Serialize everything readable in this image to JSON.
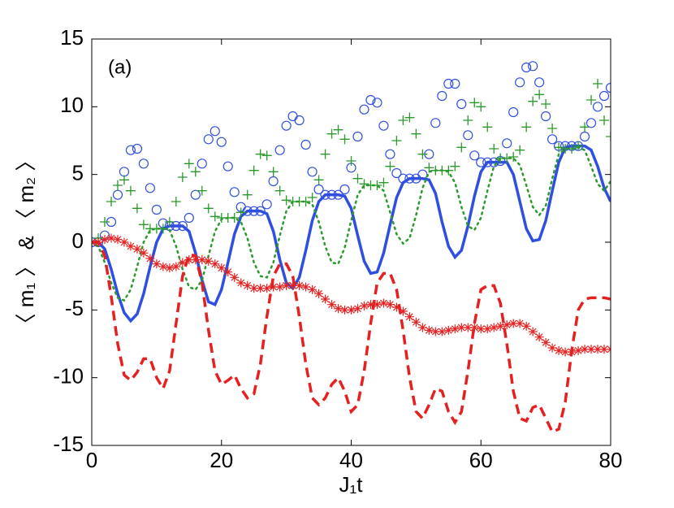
{
  "chart_data": {
    "type": "line",
    "annotation": "(a)",
    "xlabel": "J₁t",
    "ylabel": "〈 m₁ 〉 & 〈 m₂ 〉",
    "xlim": [
      0,
      80
    ],
    "xticks": [
      0,
      20,
      40,
      60,
      80
    ],
    "ylim": [
      -15,
      15
    ],
    "yticks": [
      -15,
      -10,
      -5,
      0,
      5,
      10,
      15
    ],
    "grid": false,
    "x": [
      0,
      1,
      2,
      3,
      4,
      5,
      6,
      7,
      8,
      9,
      10,
      11,
      12,
      13,
      14,
      15,
      16,
      17,
      18,
      19,
      20,
      21,
      22,
      23,
      24,
      25,
      26,
      27,
      28,
      29,
      30,
      31,
      32,
      33,
      34,
      35,
      36,
      37,
      38,
      39,
      40,
      41,
      42,
      43,
      44,
      45,
      46,
      47,
      48,
      49,
      50,
      51,
      52,
      53,
      54,
      55,
      56,
      57,
      58,
      59,
      60,
      61,
      62,
      63,
      64,
      65,
      66,
      67,
      68,
      69,
      70,
      71,
      72,
      73,
      74,
      75,
      76,
      77,
      78,
      79,
      80
    ],
    "series": [
      {
        "color": "#2f4fe0",
        "line": "solid",
        "marker": "none",
        "values": [
          0,
          0,
          -0.5,
          -2,
          -3.8,
          -5.2,
          -5.8,
          -5.3,
          -3.8,
          -1.8,
          0,
          1.0,
          1.2,
          1.2,
          1.2,
          0.8,
          -0.8,
          -2.8,
          -4.4,
          -4.6,
          -3.5,
          -1.5,
          0.6,
          1.9,
          2.3,
          2.3,
          2.3,
          2.1,
          0.8,
          -1.3,
          -3,
          -3.4,
          -2.6,
          -0.6,
          1.6,
          3.0,
          3.5,
          3.5,
          3.5,
          3.4,
          2.5,
          0.5,
          -1.4,
          -2.3,
          -2.2,
          -0.8,
          1.3,
          3.3,
          4.4,
          4.7,
          4.7,
          4.7,
          4.6,
          3.6,
          1.5,
          -0.3,
          -1.1,
          -0.6,
          1.2,
          3.4,
          5.2,
          5.9,
          5.9,
          5.9,
          5.9,
          5.0,
          3.0,
          1.0,
          0.1,
          0.2,
          1.6,
          3.8,
          5.9,
          7.0,
          7.1,
          7.1,
          7.1,
          6.8,
          5.6,
          4.0,
          3.0
        ]
      },
      {
        "color": "#2f4fe0",
        "line": "none",
        "marker": "o",
        "values": [
          0,
          0,
          0.5,
          1.5,
          3.5,
          5.2,
          6.8,
          6.9,
          5.8,
          4,
          2.4,
          1.4,
          1.2,
          1.2,
          1.2,
          1.8,
          3.5,
          5.8,
          7.6,
          8.2,
          7.4,
          5.6,
          3.7,
          2.6,
          2.3,
          2.3,
          2.3,
          2.8,
          4.5,
          6.8,
          8.6,
          9.3,
          9.0,
          7.2,
          5.2,
          3.9,
          3.5,
          3.5,
          3.5,
          3.9,
          5.5,
          7.8,
          9.8,
          10.5,
          10.3,
          8.6,
          6.5,
          5.1,
          4.7,
          4.7,
          4.7,
          5.0,
          6.5,
          8.8,
          10.8,
          11.7,
          11.7,
          10.2,
          7.9,
          6.4,
          5.9,
          5.9,
          5.9,
          6.0,
          7.3,
          9.6,
          11.8,
          12.9,
          13.0,
          11.8,
          9.3,
          7.6,
          7.1,
          7.1,
          7.1,
          7.1,
          7.8,
          8.8,
          10.0,
          10.8,
          11.4
        ]
      },
      {
        "color": "#2a9a2a",
        "line": "dotted",
        "marker": "none",
        "values": [
          0,
          -0.3,
          -1.5,
          -3,
          -4.1,
          -4.3,
          -3.5,
          -1.8,
          0,
          0.9,
          1,
          1,
          0.9,
          -0.3,
          -2,
          -3.3,
          -3.5,
          -2.8,
          -1,
          0.8,
          1.7,
          1.8,
          1.8,
          1.5,
          0.3,
          -1.5,
          -2.5,
          -2.6,
          -1.5,
          0.5,
          2.3,
          3,
          3,
          3,
          2.8,
          1.5,
          -0.3,
          -1.5,
          -1.6,
          -0.4,
          1.6,
          3.5,
          4.2,
          4.2,
          4.2,
          3.8,
          2.2,
          0.6,
          -0.1,
          0.3,
          2,
          4,
          5.2,
          5.3,
          5.3,
          5.2,
          4.4,
          2.6,
          1.2,
          0.9,
          1.8,
          3.8,
          5.6,
          6.2,
          6.2,
          6.2,
          5.7,
          4.2,
          2.6,
          2.0,
          2.7,
          4.7,
          6.5,
          6.9,
          6.9,
          7,
          6.8,
          5.6,
          4.3,
          3.8,
          4.5
        ]
      },
      {
        "color": "#2a9a2a",
        "line": "none",
        "marker": "+",
        "values": [
          0,
          0.3,
          1.5,
          3,
          4.2,
          4.6,
          3.8,
          2.5,
          1.3,
          1,
          1,
          1,
          1.5,
          3,
          4.8,
          5.8,
          5.2,
          3.8,
          2.5,
          1.9,
          1.8,
          1.8,
          1.8,
          2.2,
          3.5,
          5.3,
          6.5,
          6.4,
          5.2,
          3.8,
          3.1,
          3,
          3,
          3,
          3.3,
          4.6,
          6.5,
          8.0,
          8.3,
          7.6,
          6.0,
          4.7,
          4.3,
          4.2,
          4.2,
          4.4,
          5.6,
          7.5,
          9.0,
          9.2,
          8.0,
          6.5,
          5.5,
          5.3,
          5.3,
          5.3,
          5.6,
          7.0,
          9.0,
          10.3,
          10.0,
          8.5,
          6.9,
          6.2,
          6.2,
          6.3,
          6.8,
          8.5,
          10.4,
          10.9,
          10.2,
          8.4,
          7.0,
          6.9,
          6.9,
          7.1,
          8.5,
          10.5,
          11.7,
          9.0,
          7.8
        ]
      },
      {
        "color": "#e62020",
        "line": "dashed",
        "marker": "none",
        "values": [
          0,
          0,
          -1,
          -4,
          -7.5,
          -9.8,
          -10.2,
          -9.6,
          -8.6,
          -8.6,
          -10,
          -10.8,
          -9.5,
          -6,
          -2.5,
          -0.9,
          -1,
          -3,
          -6.5,
          -9.5,
          -10.5,
          -10.2,
          -9.8,
          -10.8,
          -11.5,
          -11.2,
          -9,
          -5.5,
          -2.5,
          -1.6,
          -1.6,
          -2.5,
          -5.5,
          -9,
          -11.5,
          -12,
          -11.5,
          -10.5,
          -10,
          -11,
          -12.5,
          -12,
          -9.5,
          -6,
          -3,
          -2.3,
          -2.3,
          -3.5,
          -6.5,
          -10,
          -12.5,
          -13,
          -12,
          -10.8,
          -11,
          -12.5,
          -13.3,
          -12.5,
          -9.5,
          -6,
          -3.5,
          -3.2,
          -3.2,
          -4.5,
          -7.5,
          -11,
          -13,
          -13.2,
          -12.2,
          -12,
          -13,
          -14,
          -13.8,
          -11.8,
          -8,
          -5,
          -4.2,
          -4.1,
          -4.1,
          -4.1,
          -4.2
        ]
      },
      {
        "color": "#e62020",
        "line": "none",
        "marker": "*",
        "values": [
          0,
          0,
          0.2,
          0.3,
          0.2,
          0,
          -0.3,
          -0.5,
          -0.8,
          -1.2,
          -1.6,
          -1.8,
          -1.9,
          -1.8,
          -1.5,
          -1.3,
          -1.3,
          -1.3,
          -1.4,
          -1.6,
          -1.9,
          -2.2,
          -2.6,
          -3,
          -3.2,
          -3.4,
          -3.4,
          -3.4,
          -3.3,
          -3.3,
          -3.2,
          -3.2,
          -3.2,
          -3.3,
          -3.5,
          -3.8,
          -4.2,
          -4.6,
          -4.9,
          -5.0,
          -5.0,
          -4.9,
          -4.7,
          -4.6,
          -4.6,
          -4.5,
          -4.6,
          -4.8,
          -5.1,
          -5.5,
          -5.9,
          -6.3,
          -6.5,
          -6.6,
          -6.6,
          -6.5,
          -6.4,
          -6.3,
          -6.3,
          -6.3,
          -6.4,
          -6.4,
          -6.3,
          -6.2,
          -6.1,
          -6.0,
          -6.0,
          -6.2,
          -6.6,
          -7.0,
          -7.4,
          -7.8,
          -8.0,
          -8.1,
          -8.1,
          -8.0,
          -7.9,
          -7.9,
          -7.9,
          -7.9,
          -7.9
        ]
      }
    ]
  }
}
